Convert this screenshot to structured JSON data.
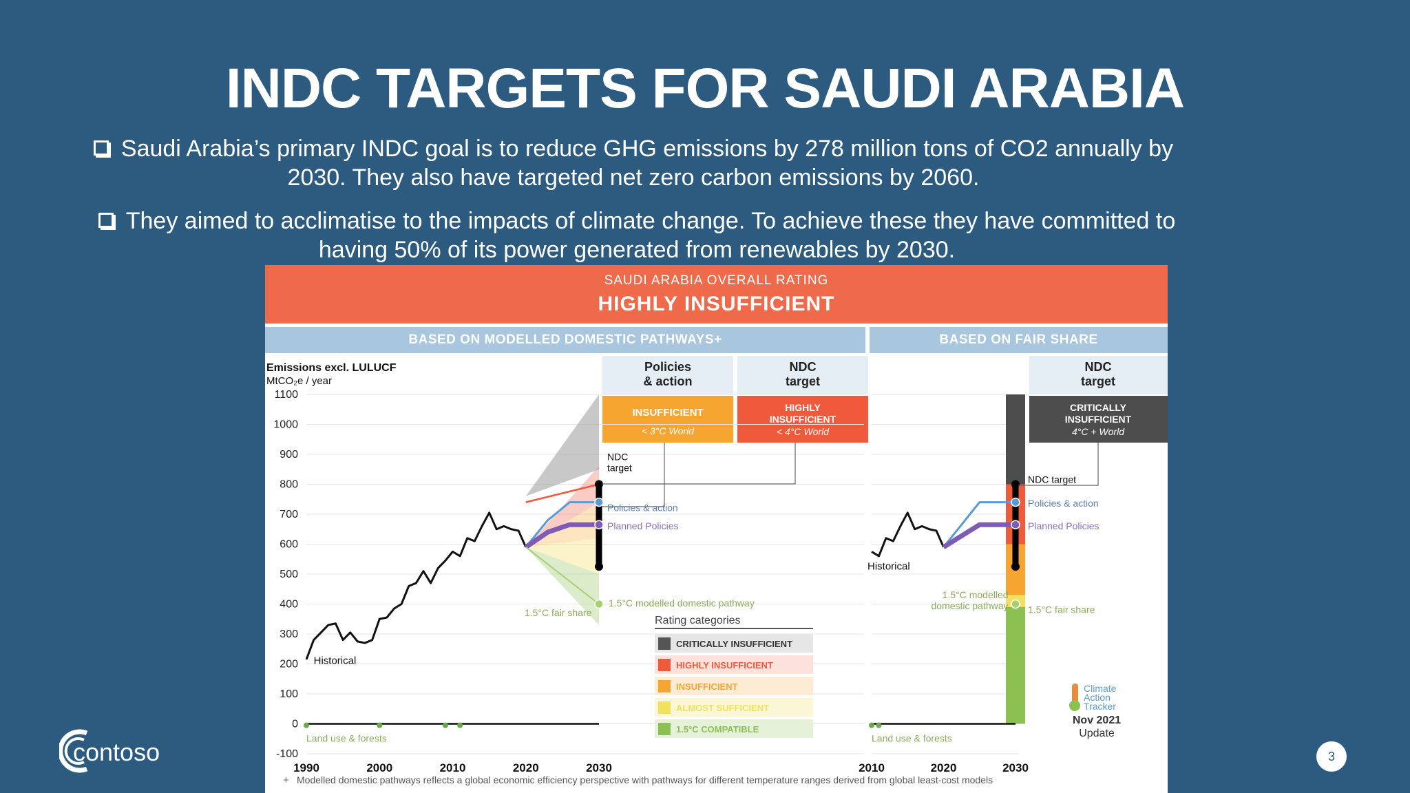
{
  "slide": {
    "title": "INDC TARGETS FOR SAUDI ARABIA",
    "bullets": [
      "Saudi Arabia’s primary INDC goal is to reduce GHG emissions by 278 million tons of CO2 annually by 2030. They also have targeted net zero carbon emissions by 2060.",
      "They aimed to acclimatise to the impacts of climate change. To achieve these they have committed to having 50% of its power generated from renewables by 2030."
    ],
    "page_number": "3",
    "logo_text": "contoso"
  },
  "figure": {
    "banner_sub": "SAUDI ARABIA OVERALL RATING",
    "banner_main": "HIGHLY INSUFFICIENT",
    "section_left": "BASED ON MODELLED DOMESTIC PATHWAYS",
    "section_left_mark": "+",
    "section_right": "BASED ON FAIR SHARE",
    "col_policies": [
      "Policies",
      "& action"
    ],
    "col_ndc": [
      "NDC",
      "target"
    ],
    "col_ndc_right": [
      "NDC",
      "target"
    ],
    "badge_policies": [
      "INSUFFICIENT",
      "< 3°C World"
    ],
    "badge_ndc": [
      "HIGHLY",
      "INSUFFICIENT",
      "< 4°C World"
    ],
    "badge_ndc_right": [
      "CRITICALLY",
      "INSUFFICIENT",
      "4°C + World"
    ],
    "ylabel": "Emissions excl. LULUCF",
    "yunit": "MtCO₂e / year",
    "labels": {
      "historical": "Historical",
      "ndc_target": "NDC\ntarget",
      "ndc_target_right": "NDC target",
      "policies_action": "Policies & action",
      "planned_policies": "Planned Policies",
      "fair_share": "1.5°C fair share",
      "modelled_pathway": "1.5°C modelled domestic pathway",
      "modelled_pathway_right": "1.5°C modelled\ndomestic pathway",
      "land_use": "Land use & forests"
    },
    "rating_title": "Rating categories",
    "rating_categories": [
      {
        "label": "CRITICALLY INSUFFICIENT",
        "color": "#555555",
        "bg": "#e6e6e6"
      },
      {
        "label": "HIGHLY INSUFFICIENT",
        "color": "#ef5a3c",
        "bg": "#fde2dc"
      },
      {
        "label": "INSUFFICIENT",
        "color": "#f5a530",
        "bg": "#fdecd3"
      },
      {
        "label": "ALMOST SUFFICIENT",
        "color": "#f2e060",
        "bg": "#fbf6d6"
      },
      {
        "label": "1.5°C COMPATIBLE",
        "color": "#8cc152",
        "bg": "#e5f1d9"
      }
    ],
    "cat_logo": [
      "Climate",
      "Action",
      "Tracker"
    ],
    "update": [
      "Nov 2021",
      "Update"
    ],
    "footnote": "Modelled domestic pathways reflects a global economic efficiency perspective with pathways for different temperature ranges derived from global least-cost models",
    "footnote_mark": "+",
    "colors": {
      "banner": "#ef6a4b",
      "section": "#a8c6de",
      "insufficient": "#f5a530",
      "highly_insufficient": "#ef5a3c",
      "critically_insufficient": "#4d4d4d",
      "compatible": "#8cc152",
      "policies_line": "#5b9bd5",
      "planned_line": "#7e5bb5"
    }
  },
  "chart_data": [
    {
      "type": "line",
      "title": "",
      "xlabel": "",
      "ylabel": "Emissions excl. LULUCF MtCO₂e / year",
      "xlim": [
        1990,
        2030
      ],
      "ylim": [
        -100,
        1100
      ],
      "xticks": [
        1990,
        2000,
        2010,
        2020,
        2030
      ],
      "yticks": [
        1100,
        1000,
        900,
        800,
        700,
        600,
        500,
        400,
        300,
        200,
        100,
        0,
        -100
      ],
      "grid": true,
      "series": [
        {
          "name": "Historical",
          "x": [
            1990,
            1991,
            1992,
            1993,
            1994,
            1995,
            1996,
            1997,
            1998,
            1999,
            2000,
            2001,
            2002,
            2003,
            2004,
            2005,
            2006,
            2007,
            2008,
            2009,
            2010,
            2011,
            2012,
            2013,
            2014,
            2015,
            2016,
            2017,
            2018,
            2019,
            2020
          ],
          "y": [
            215,
            280,
            305,
            330,
            335,
            280,
            305,
            275,
            270,
            280,
            350,
            355,
            385,
            400,
            460,
            470,
            510,
            470,
            520,
            545,
            575,
            560,
            620,
            610,
            660,
            705,
            650,
            660,
            650,
            645,
            590
          ]
        },
        {
          "name": "Policies & action",
          "x": [
            2020,
            2023,
            2026,
            2030
          ],
          "y": [
            590,
            680,
            740,
            740
          ]
        },
        {
          "name": "Planned Policies",
          "x": [
            2020,
            2023,
            2026,
            2030
          ],
          "y": [
            590,
            640,
            665,
            665
          ]
        },
        {
          "name": "NDC target",
          "x": [
            2020,
            2030
          ],
          "y": [
            740,
            800
          ]
        },
        {
          "name": "1.5°C modelled domestic pathway",
          "x": [
            2020,
            2030
          ],
          "y": [
            590,
            400
          ]
        },
        {
          "name": "Land use & forests",
          "x": [
            1990,
            2030
          ],
          "y": [
            0,
            0
          ]
        }
      ]
    },
    {
      "type": "line",
      "title": "",
      "xlim": [
        2010,
        2030
      ],
      "ylim": [
        -100,
        1100
      ],
      "xticks": [
        2010,
        2020,
        2030
      ],
      "series": [
        {
          "name": "Historical",
          "x": [
            2010,
            2011,
            2012,
            2013,
            2014,
            2015,
            2016,
            2017,
            2018,
            2019,
            2020
          ],
          "y": [
            575,
            560,
            620,
            610,
            660,
            705,
            650,
            660,
            650,
            645,
            590
          ]
        },
        {
          "name": "Policies & action",
          "x": [
            2020,
            2025,
            2030
          ],
          "y": [
            590,
            740,
            740
          ]
        },
        {
          "name": "Planned Policies",
          "x": [
            2020,
            2025,
            2030
          ],
          "y": [
            590,
            665,
            665
          ]
        },
        {
          "name": "NDC target",
          "x": [
            2030
          ],
          "y": [
            800
          ]
        },
        {
          "name": "1.5°C fair share",
          "x": [
            2030
          ],
          "y": [
            400
          ]
        }
      ]
    }
  ]
}
